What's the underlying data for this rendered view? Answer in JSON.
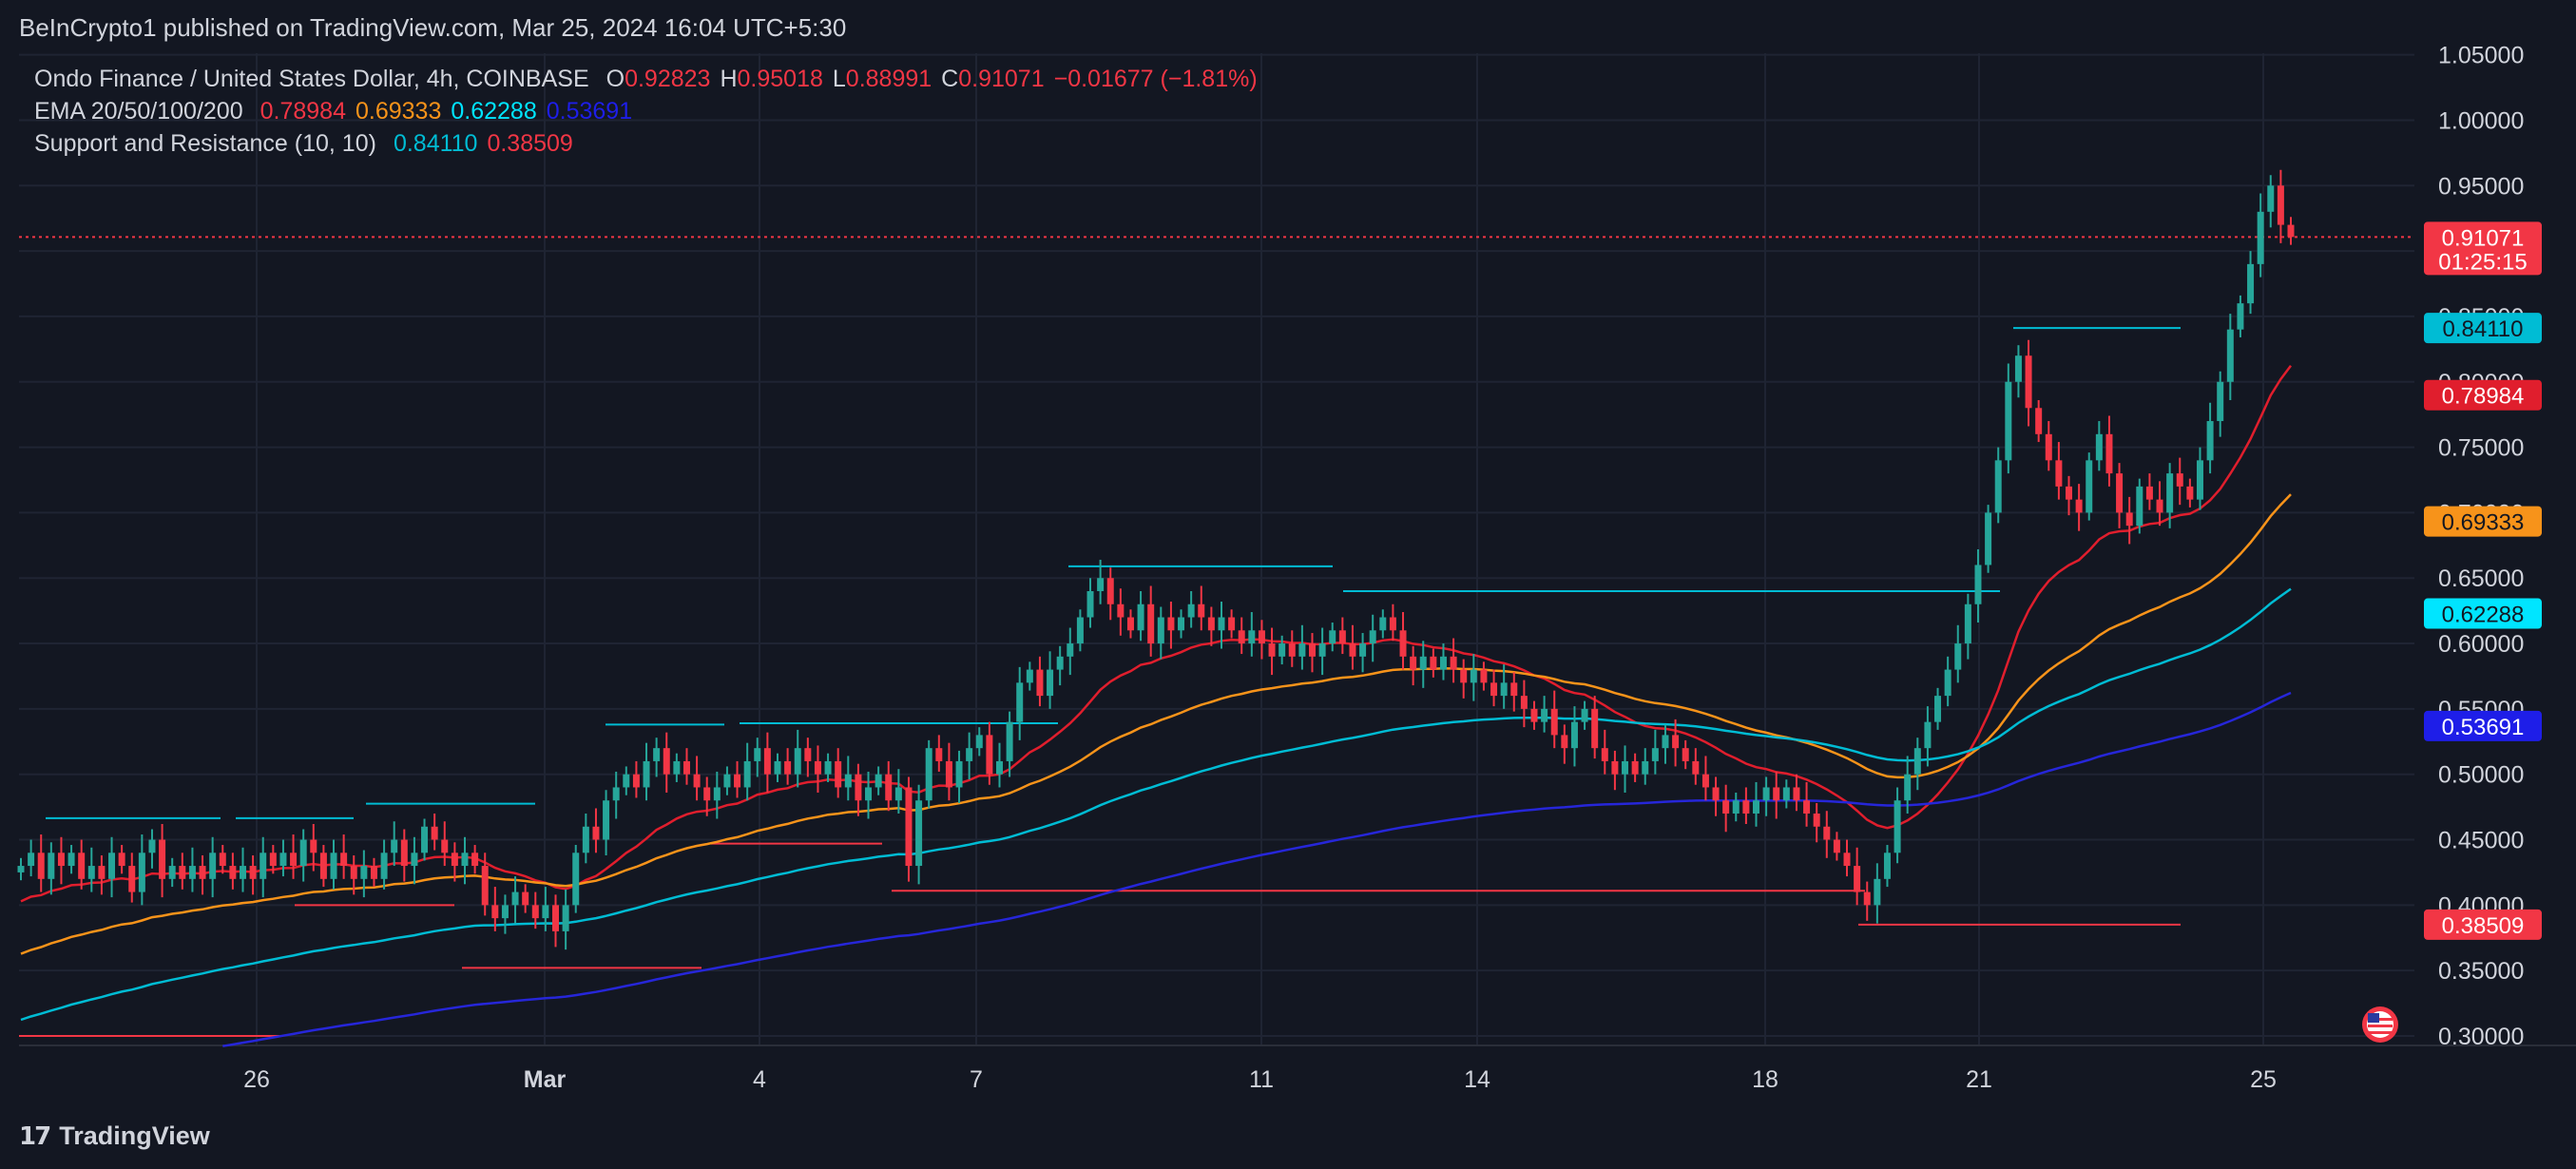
{
  "header": {
    "published": "BeInCrypto1 published on TradingView.com, Mar 25, 2024 16:04 UTC+5:30"
  },
  "legend": {
    "symbol": "Ondo Finance / United States Dollar, 4h, COINBASE",
    "ohlc": [
      {
        "k": "O",
        "v": "0.92823"
      },
      {
        "k": "H",
        "v": "0.95018"
      },
      {
        "k": "L",
        "v": "0.88991"
      },
      {
        "k": "C",
        "v": "0.91071"
      }
    ],
    "change": "−0.01677 (−1.81%)",
    "ema_label": "EMA 20/50/100/200",
    "ema_values": [
      "0.78984",
      "0.69333",
      "0.62288",
      "0.53691"
    ],
    "sr_label": "Support and Resistance (10, 10)",
    "sr_values": [
      "0.84110",
      "0.38509"
    ]
  },
  "footer": {
    "brand": "TradingView"
  },
  "colors": {
    "background": "#131722",
    "grid": "#1f2433",
    "up": "#26a69a",
    "down": "#f23645",
    "ema20": "#e01e2d",
    "ema50": "#f7931a",
    "ema100": "#00bcd4",
    "ema200": "#2626d9",
    "resistance": "#00bcd4",
    "support": "#f23645"
  },
  "chart_data": {
    "type": "candlestick",
    "x_ticks": [
      "26",
      "Mar",
      "4",
      "7",
      "11",
      "14",
      "18",
      "21",
      "25"
    ],
    "y_ticks": [
      "0.30000",
      "0.35000",
      "0.40000",
      "0.45000",
      "0.50000",
      "0.55000",
      "0.60000",
      "0.65000",
      "0.70000",
      "0.75000",
      "0.80000",
      "0.85000",
      "0.90000",
      "0.95000",
      "1.00000",
      "1.05000"
    ],
    "ylim": [
      0.29,
      1.05
    ],
    "price_labels": [
      {
        "value": "0.91071",
        "extra": "01:25:15",
        "price": 0.91071,
        "color": "#f23645"
      },
      {
        "value": "0.84110",
        "price": 0.8411,
        "color": "#00bcd4"
      },
      {
        "value": "0.78984",
        "price": 0.78984,
        "color": "#e01e2d"
      },
      {
        "value": "0.69333",
        "price": 0.69333,
        "color": "#f7931a"
      },
      {
        "value": "0.62288",
        "price": 0.62288,
        "color": "#00e5ff"
      },
      {
        "value": "0.53691",
        "price": 0.53691,
        "color": "#1e1ee8"
      },
      {
        "value": "0.38509",
        "price": 0.38509,
        "color": "#f23645"
      }
    ],
    "candles_close": [
      0.43,
      0.44,
      0.42,
      0.44,
      0.43,
      0.44,
      0.42,
      0.43,
      0.42,
      0.44,
      0.43,
      0.41,
      0.44,
      0.45,
      0.42,
      0.43,
      0.42,
      0.43,
      0.42,
      0.44,
      0.43,
      0.42,
      0.43,
      0.42,
      0.44,
      0.43,
      0.44,
      0.43,
      0.45,
      0.44,
      0.42,
      0.44,
      0.43,
      0.42,
      0.43,
      0.42,
      0.44,
      0.45,
      0.43,
      0.44,
      0.46,
      0.45,
      0.44,
      0.43,
      0.44,
      0.43,
      0.4,
      0.39,
      0.4,
      0.41,
      0.4,
      0.39,
      0.4,
      0.38,
      0.4,
      0.44,
      0.46,
      0.45,
      0.48,
      0.49,
      0.5,
      0.49,
      0.51,
      0.52,
      0.5,
      0.51,
      0.5,
      0.49,
      0.48,
      0.49,
      0.5,
      0.49,
      0.51,
      0.52,
      0.5,
      0.51,
      0.5,
      0.52,
      0.51,
      0.5,
      0.51,
      0.49,
      0.5,
      0.48,
      0.49,
      0.5,
      0.48,
      0.49,
      0.43,
      0.48,
      0.52,
      0.51,
      0.49,
      0.51,
      0.52,
      0.53,
      0.5,
      0.51,
      0.54,
      0.57,
      0.58,
      0.56,
      0.58,
      0.59,
      0.6,
      0.62,
      0.64,
      0.65,
      0.63,
      0.62,
      0.61,
      0.63,
      0.6,
      0.62,
      0.61,
      0.62,
      0.63,
      0.62,
      0.61,
      0.62,
      0.61,
      0.6,
      0.61,
      0.6,
      0.59,
      0.6,
      0.59,
      0.6,
      0.59,
      0.6,
      0.61,
      0.6,
      0.59,
      0.6,
      0.61,
      0.62,
      0.61,
      0.59,
      0.58,
      0.59,
      0.58,
      0.59,
      0.58,
      0.57,
      0.58,
      0.57,
      0.56,
      0.57,
      0.56,
      0.55,
      0.54,
      0.55,
      0.53,
      0.52,
      0.54,
      0.55,
      0.52,
      0.51,
      0.5,
      0.51,
      0.5,
      0.51,
      0.52,
      0.53,
      0.52,
      0.51,
      0.5,
      0.49,
      0.48,
      0.47,
      0.48,
      0.47,
      0.48,
      0.49,
      0.48,
      0.49,
      0.48,
      0.47,
      0.46,
      0.45,
      0.44,
      0.43,
      0.41,
      0.4,
      0.42,
      0.44,
      0.48,
      0.5,
      0.52,
      0.54,
      0.56,
      0.58,
      0.6,
      0.63,
      0.66,
      0.7,
      0.74,
      0.8,
      0.82,
      0.78,
      0.76,
      0.74,
      0.72,
      0.71,
      0.7,
      0.74,
      0.76,
      0.73,
      0.7,
      0.69,
      0.72,
      0.71,
      0.7,
      0.73,
      0.72,
      0.71,
      0.74,
      0.77,
      0.8,
      0.84,
      0.86,
      0.89,
      0.93,
      0.95,
      0.92,
      0.91071
    ]
  }
}
